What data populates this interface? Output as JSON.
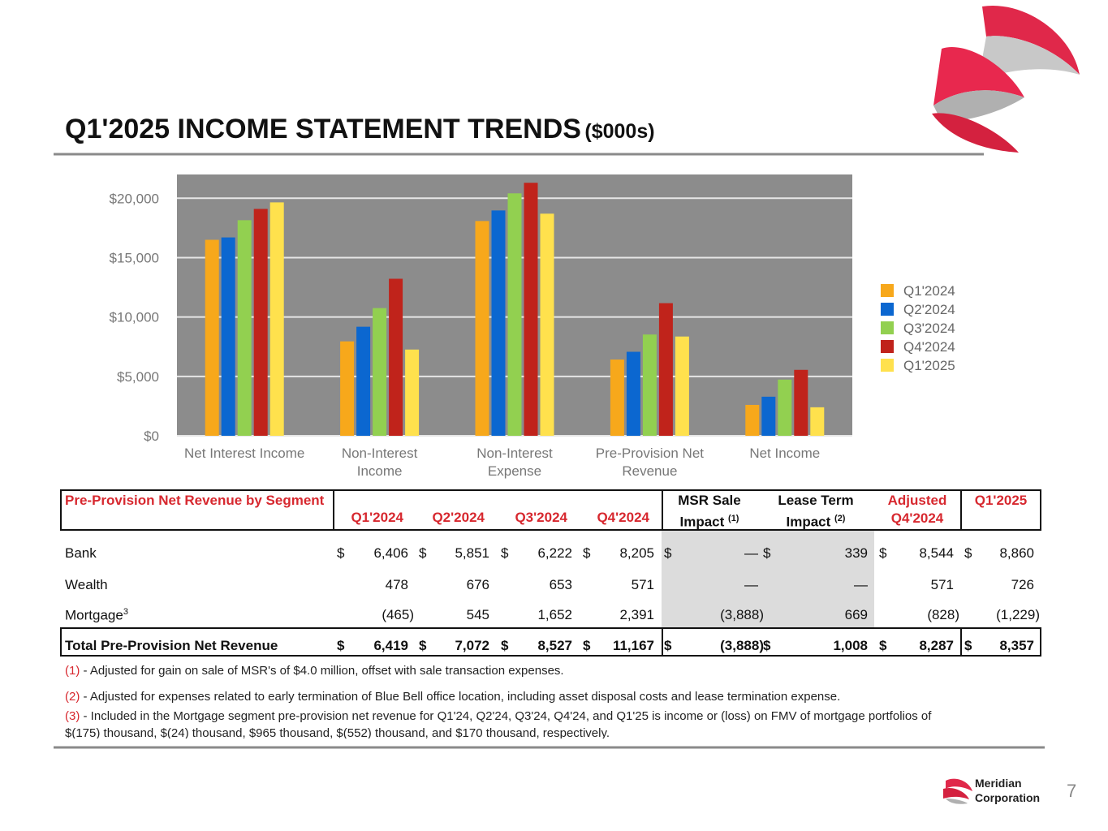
{
  "title": "Q1'2025 INCOME STATEMENT TRENDS",
  "title_unit": "($000s)",
  "chart_data": {
    "type": "bar",
    "categories": [
      "Net Interest Income",
      "Non-Interest Income",
      "Non-Interest Expense",
      "Pre-Provision Net Revenue",
      "Net Income"
    ],
    "series": [
      {
        "name": "Q1'2024",
        "color": "#f7a81b",
        "values": [
          16500,
          7950,
          18080,
          6419,
          2600
        ]
      },
      {
        "name": "Q2'2024",
        "color": "#0b67d0",
        "values": [
          16700,
          9180,
          18970,
          7072,
          3290
        ]
      },
      {
        "name": "Q3'2024",
        "color": "#92d050",
        "values": [
          18150,
          10750,
          20410,
          8527,
          4730
        ]
      },
      {
        "name": "Q4'2024",
        "color": "#c0231b",
        "values": [
          19100,
          13220,
          21300,
          11167,
          5550
        ]
      },
      {
        "name": "Q1'2025",
        "color": "#ffe14d",
        "values": [
          19650,
          7260,
          18700,
          8357,
          2400
        ]
      }
    ],
    "ylim": [
      0,
      22000
    ],
    "yticks": [
      {
        "value": 0,
        "label": "$0"
      },
      {
        "value": 5000,
        "label": "$5,000"
      },
      {
        "value": 10000,
        "label": "$10,000"
      },
      {
        "value": 15000,
        "label": "$15,000"
      },
      {
        "value": 20000,
        "label": "$20,000"
      }
    ],
    "grid": true,
    "legend": "right",
    "background": "#8c8c8c"
  },
  "table": {
    "segment_header": "Pre-Provision Net Revenue by Segment",
    "currency": "$",
    "columns": [
      {
        "label": "Q1'2024"
      },
      {
        "label": "Q2'2024"
      },
      {
        "label": "Q3'2024"
      },
      {
        "label": "Q4'2024"
      },
      {
        "label": "MSR Sale Impact",
        "note": "(1)"
      },
      {
        "label": "Lease Term Impact",
        "note": "(2)"
      },
      {
        "label": "Adjusted Q4'2024"
      },
      {
        "label": "Q1'2025"
      }
    ],
    "rows": [
      {
        "label": "Bank",
        "currency_signs": true,
        "values": [
          "6,406",
          "5,851",
          "6,222",
          "8,205",
          "—",
          "339",
          "8,544",
          "8,860"
        ]
      },
      {
        "label": "Wealth",
        "currency_signs": false,
        "values": [
          "478",
          "676",
          "653",
          "571",
          "—",
          "—",
          "571",
          "726"
        ]
      },
      {
        "label": "Mortgage",
        "note": "3",
        "currency_signs": false,
        "values": [
          "(465)",
          "545",
          "1,652",
          "2,391",
          "(3,888)",
          "669",
          "(828)",
          "(1,229)"
        ]
      }
    ],
    "total": {
      "label": "Total Pre-Provision Net Revenue",
      "currency_signs": true,
      "values": [
        "6,419",
        "7,072",
        "8,527",
        "11,167",
        "(3,888)",
        "1,008",
        "8,287",
        "8,357"
      ]
    }
  },
  "footnotes": [
    {
      "marker": "(1)",
      "text": "- Adjusted for gain on sale of MSR's of $4.0 million, offset with sale transaction expenses."
    },
    {
      "marker": "(2)",
      "text": "- Adjusted for expenses related to early termination of Blue Bell office location, including asset disposal costs and lease termination expense."
    },
    {
      "marker": "(3)",
      "text": "- Included in the Mortgage segment pre-provision net revenue for Q1'24, Q2'24, Q3'24, Q4'24, and Q1'25 is income or (loss) on FMV of mortgage portfolios  of $(175) thousand, $(24) thousand, $965 thousand, $(552) thousand, and $170 thousand, respectively."
    }
  ],
  "footer": {
    "company_line1": "Meridian",
    "company_line2": "Corporation",
    "page": "7"
  }
}
